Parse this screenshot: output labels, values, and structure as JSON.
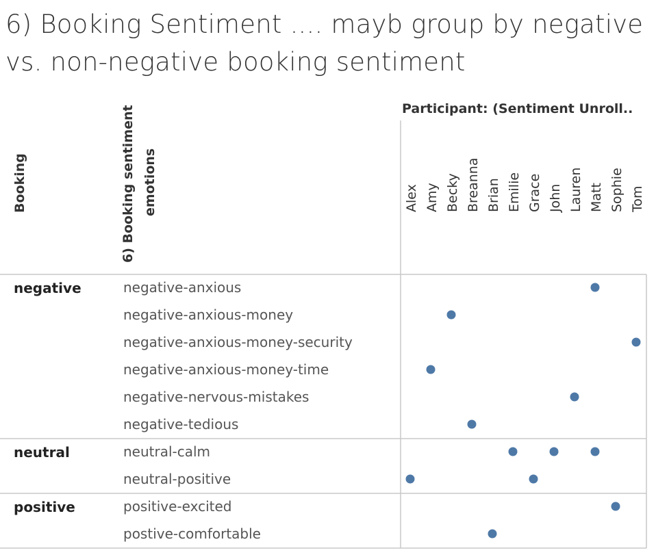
{
  "title": "6) Booking Sentiment .... mayb group by negative vs. non-negative booking sentiment",
  "colors": {
    "dot": "#4e79a7",
    "grid": "#c8c8c8",
    "text_header": "#333333",
    "text_row": "#555555"
  },
  "chart_data": {
    "type": "scatter",
    "column_header_title": "Participant: (Sentiment Unroll..",
    "row_header_1": "Booking",
    "row_header_2_line1": "6) Booking sentiment",
    "row_header_2_line2": "emotions",
    "participants": [
      "Alex",
      "Amy",
      "Becky",
      "Breanna",
      "Brian",
      "Emilie",
      "Grace",
      "John",
      "Lauren",
      "Matt",
      "Sophie",
      "Tom"
    ],
    "groups": [
      {
        "name": "negative",
        "rows": [
          {
            "label": "negative-anxious",
            "participants": [
              "Matt"
            ]
          },
          {
            "label": "negative-anxious-money",
            "participants": [
              "Becky"
            ]
          },
          {
            "label": "negative-anxious-money-security",
            "participants": [
              "Tom"
            ]
          },
          {
            "label": "negative-anxious-money-time",
            "participants": [
              "Amy"
            ]
          },
          {
            "label": "negative-nervous-mistakes",
            "participants": [
              "Lauren"
            ]
          },
          {
            "label": "negative-tedious",
            "participants": [
              "Breanna"
            ]
          }
        ]
      },
      {
        "name": "neutral",
        "rows": [
          {
            "label": "neutral-calm",
            "participants": [
              "Emilie",
              "John",
              "Matt"
            ]
          },
          {
            "label": "neutral-positive",
            "participants": [
              "Alex",
              "Grace"
            ]
          }
        ]
      },
      {
        "name": "positive",
        "rows": [
          {
            "label": "positive-excited",
            "participants": [
              "Sophie"
            ]
          },
          {
            "label": "postive-comfortable",
            "participants": [
              "Brian"
            ]
          }
        ]
      }
    ]
  }
}
